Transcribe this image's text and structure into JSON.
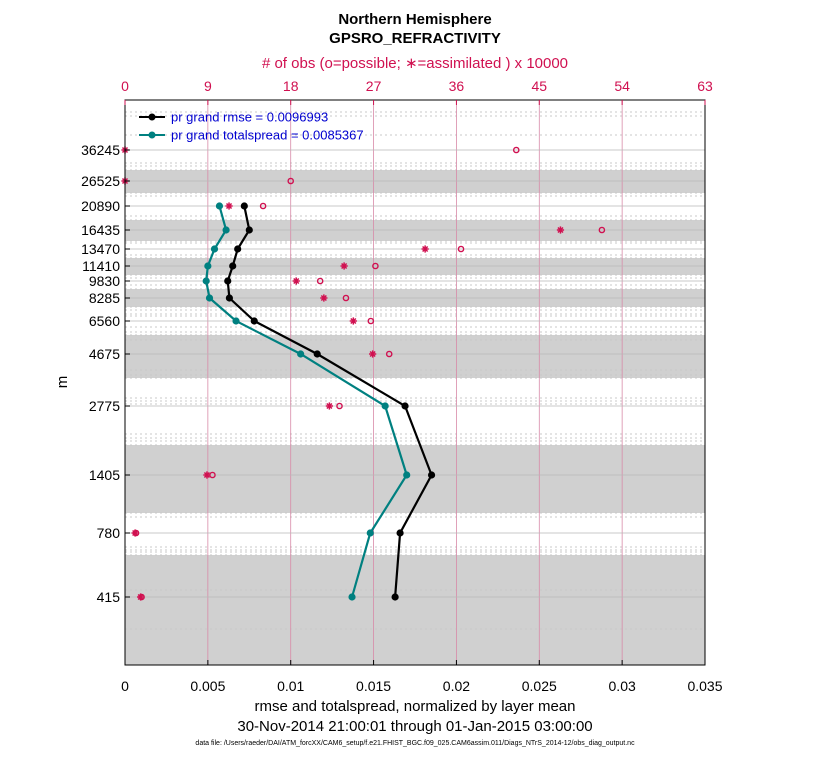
{
  "chart_data": {
    "type": "line",
    "title": "Northern Hemisphere",
    "subtitle": "GPSRO_REFRACTIVITY",
    "xlabel": "rmse and totalspread, normalized by layer mean",
    "ylabel": "m",
    "date_range": "30-Nov-2014 21:00:01 through 01-Jan-2015 03:00:00",
    "footnote": "data file: /Users/raeder/DAI/ATM_forcXX/CAM6_setup/f.e21.FHIST_BGC.f09_025.CAM6assim.011/Diags_NTrS_2014-12/obs_diag_output.nc",
    "xlim": [
      0,
      0.035
    ],
    "x_ticks": [
      "0",
      "0.005",
      "0.01",
      "0.015",
      "0.02",
      "0.025",
      "0.03",
      "0.035"
    ],
    "top_axis": {
      "label": "# of obs (o=possible; ∗=assimilated ) x 10000",
      "range": [
        0,
        63
      ],
      "ticks": [
        "0",
        "9",
        "18",
        "27",
        "36",
        "45",
        "54",
        "63"
      ]
    },
    "y_levels": [
      "36245",
      "26525",
      "20890",
      "16435",
      "13470",
      "11410",
      "9830",
      "8285",
      "6560",
      "4675",
      "2775",
      "1405",
      "780",
      "415"
    ],
    "series": [
      {
        "name": "pr grand rmse = 0.0096993",
        "color": "#000000",
        "levels": [
          "20890",
          "16435",
          "13470",
          "11410",
          "9830",
          "8285",
          "6560",
          "4675",
          "2775",
          "1405",
          "780",
          "415"
        ],
        "values": [
          0.0072,
          0.0075,
          0.0068,
          0.0065,
          0.0062,
          0.0063,
          0.0078,
          0.0116,
          0.0169,
          0.0185,
          0.0166,
          0.0163
        ]
      },
      {
        "name": "pr grand totalspread = 0.0085367",
        "color": "#008080",
        "levels": [
          "20890",
          "16435",
          "13470",
          "11410",
          "9830",
          "8285",
          "6560",
          "4675",
          "2775",
          "1405",
          "780",
          "415"
        ],
        "values": [
          0.0057,
          0.0061,
          0.0054,
          0.005,
          0.0049,
          0.0051,
          0.0067,
          0.0106,
          0.0157,
          0.017,
          0.0148,
          0.0137
        ]
      }
    ],
    "obs_possible": {
      "levels": [
        "36245",
        "26525",
        "20890",
        "16435",
        "13470",
        "11410",
        "9830",
        "8285",
        "6560",
        "4675",
        "2775",
        "1405",
        "780",
        "415"
      ],
      "values": [
        42.5,
        18.0,
        15.0,
        51.8,
        36.5,
        27.2,
        21.2,
        24.0,
        26.7,
        28.7,
        23.3,
        9.5,
        1.2,
        1.8
      ]
    },
    "obs_assimilated": {
      "levels": [
        "36245",
        "26525",
        "20890",
        "16435",
        "13470",
        "11410",
        "9830",
        "8285",
        "6560",
        "4675",
        "2775",
        "1405",
        "780",
        "415"
      ],
      "values": [
        0.0,
        0.0,
        11.3,
        47.3,
        32.6,
        23.8,
        18.6,
        21.6,
        24.8,
        26.9,
        22.2,
        8.9,
        1.1,
        1.7
      ]
    }
  }
}
